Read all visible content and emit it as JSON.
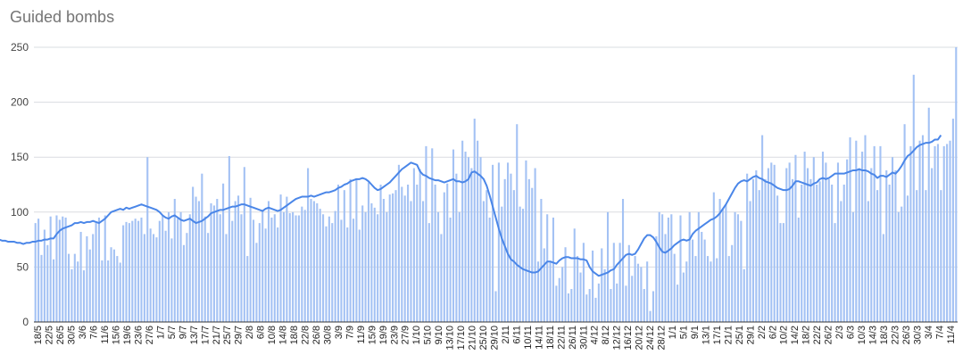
{
  "chart_data": {
    "type": "bar",
    "title": "Guided bombs",
    "xlabel": "",
    "ylabel": "",
    "ylim": [
      0,
      250
    ],
    "yticks": [
      0,
      50,
      100,
      150,
      200,
      250
    ],
    "grid": true,
    "legend": "none",
    "colors": {
      "bars": "#a4c2f4",
      "trend": "#4a86e8",
      "grid": "#dadce0",
      "axis": "#333333"
    },
    "x_tick_labels": [
      "18/5",
      "22/5",
      "26/5",
      "30/5",
      "3/6",
      "7/6",
      "11/6",
      "15/6",
      "19/6",
      "23/6",
      "27/6",
      "1/7",
      "5/7",
      "9/7",
      "13/7",
      "17/7",
      "21/7",
      "25/7",
      "29/7",
      "2/8",
      "6/8",
      "10/8",
      "14/8",
      "18/8",
      "22/8",
      "26/8",
      "30/8",
      "3/9",
      "7/9",
      "11/9",
      "15/9",
      "19/9",
      "23/9",
      "27/9",
      "1/10",
      "5/10",
      "9/10",
      "13/10",
      "17/10",
      "21/10",
      "25/10",
      "29/10",
      "2/11",
      "6/11",
      "10/11",
      "14/11",
      "18/11",
      "22/11",
      "26/11",
      "30/11",
      "4/12",
      "8/12",
      "12/12",
      "16/12",
      "20/12",
      "24/12",
      "28/12",
      "1/1",
      "5/1",
      "9/1",
      "13/1",
      "17/1",
      "21/1",
      "25/1",
      "29/1",
      "2/2",
      "6/2",
      "10/2",
      "14/2",
      "18/2",
      "22/2",
      "26/2",
      "2/3",
      "6/3",
      "10/3",
      "14/3",
      "18/3",
      "22/3",
      "26/3",
      "30/3",
      "3/4",
      "7/4",
      "11/4"
    ],
    "series": [
      {
        "type": "bar",
        "values": [
          90,
          94,
          61,
          84,
          70,
          96,
          57,
          97,
          93,
          96,
          95,
          62,
          48,
          62,
          55,
          82,
          47,
          78,
          66,
          80,
          90,
          95,
          56,
          97,
          56,
          68,
          66,
          60,
          54,
          88,
          91,
          90,
          92,
          94,
          92,
          95,
          80,
          150,
          85,
          80,
          77,
          92,
          97,
          83,
          100,
          76,
          112,
          94,
          100,
          70,
          81,
          98,
          123,
          114,
          110,
          135,
          96,
          81,
          108,
          106,
          112,
          98,
          126,
          80,
          151,
          92,
          110,
          115,
          98,
          141,
          60,
          113,
          93,
          72,
          90,
          102,
          85,
          110,
          95,
          98,
          86,
          116,
          100,
          114,
          99,
          100,
          97,
          97,
          105,
          102,
          140,
          112,
          110,
          108,
          103,
          98,
          87,
          96,
          90,
          101,
          125,
          93,
          120,
          86,
          130,
          94,
          130,
          84,
          106,
          100,
          127,
          108,
          104,
          98,
          125,
          112,
          100,
          116,
          117,
          120,
          143,
          123,
          115,
          125,
          110,
          140,
          125,
          139,
          110,
          160,
          90,
          158,
          125,
          100,
          80,
          118,
          126,
          95,
          157,
          135,
          100,
          165,
          155,
          150,
          140,
          185,
          165,
          150,
          110,
          120,
          95,
          143,
          28,
          145,
          105,
          130,
          145,
          135,
          120,
          180,
          105,
          103,
          147,
          130,
          122,
          140,
          55,
          112,
          67,
          98,
          55,
          95,
          33,
          40,
          50,
          68,
          26,
          30,
          85,
          60,
          45,
          72,
          25,
          30,
          65,
          22,
          35,
          67,
          48,
          100,
          30,
          72,
          35,
          72,
          112,
          33,
          70,
          42,
          60,
          53,
          50,
          30,
          55,
          10,
          28,
          78,
          100,
          98,
          80,
          95,
          98,
          62,
          34,
          97,
          45,
          55,
          100,
          75,
          60,
          100,
          82,
          75,
          60,
          55,
          118,
          58,
          112,
          103,
          107,
          60,
          70,
          100,
          98,
          92,
          48,
          135,
          110,
          130,
          138,
          120,
          170,
          130,
          140,
          145,
          143,
          115,
          90,
          90,
          140,
          145,
          130,
          152,
          95,
          125,
          155,
          140,
          130,
          150,
          125,
          128,
          155,
          145,
          130,
          125,
          90,
          145,
          110,
          125,
          148,
          168,
          100,
          165,
          140,
          155,
          170,
          110,
          140,
          160,
          120,
          160,
          80,
          138,
          125,
          150,
          138,
          100,
          105,
          180,
          115,
          160,
          225,
          120,
          165,
          170,
          120,
          195,
          140,
          160,
          162,
          120,
          160,
          162,
          165,
          185,
          250
        ]
      },
      {
        "type": "line",
        "name": "",
        "values": [
          85,
          81,
          80,
          80,
          79,
          78,
          77,
          76,
          75,
          75,
          74,
          74,
          73,
          73,
          73,
          72,
          72,
          71,
          72,
          72,
          73,
          73,
          74,
          74,
          75,
          75,
          76,
          76,
          80,
          83,
          85,
          86,
          87,
          88,
          90,
          90,
          91,
          90,
          91,
          91,
          92,
          91,
          90,
          92,
          94,
          97,
          100,
          101,
          102,
          103,
          102,
          104,
          103,
          104,
          105,
          106,
          107,
          106,
          105,
          104,
          103,
          102,
          100,
          97,
          95,
          94,
          96,
          97,
          95,
          93,
          92,
          93,
          94,
          92,
          90,
          91,
          92,
          94,
          96,
          99,
          100,
          101,
          102,
          102,
          103,
          104,
          105,
          105,
          106,
          107,
          107,
          106,
          105,
          104,
          103,
          102,
          101,
          103,
          104,
          103,
          102,
          101,
          102,
          104,
          106,
          108,
          110,
          112,
          113,
          114,
          114,
          114,
          115,
          114,
          115,
          116,
          117,
          118,
          118,
          119,
          120,
          122,
          123,
          125,
          126,
          128,
          129,
          130,
          130,
          131,
          130,
          128,
          125,
          122,
          120,
          121,
          123,
          125,
          127,
          130,
          133,
          136,
          139,
          141,
          143,
          145,
          144,
          143,
          137,
          134,
          133,
          131,
          130,
          129,
          129,
          128,
          127,
          128,
          129,
          130,
          128,
          128,
          127,
          128,
          130,
          136,
          137,
          135,
          133,
          130,
          124,
          115,
          105,
          95,
          85,
          76,
          69,
          62,
          57,
          55,
          52,
          50,
          48,
          47,
          46,
          45,
          45,
          46,
          49,
          52,
          55,
          55,
          54,
          53,
          56,
          58,
          59,
          59,
          58,
          58,
          58,
          57,
          57,
          56,
          50,
          46,
          44,
          42,
          43,
          44,
          45,
          47,
          48,
          52,
          55,
          58,
          61,
          62,
          61,
          62,
          66,
          71,
          76,
          79,
          79,
          77,
          73,
          68,
          64,
          63,
          65,
          67,
          70,
          72,
          74,
          75,
          74,
          75,
          80,
          83,
          85,
          87,
          89,
          91,
          93,
          94,
          96,
          99,
          103,
          107,
          112,
          117,
          122,
          126,
          128,
          129,
          128,
          130,
          132,
          133,
          131,
          130,
          128,
          127,
          126,
          124,
          122,
          121,
          120,
          120,
          121,
          124,
          128,
          128,
          127,
          126,
          125,
          124,
          126,
          127,
          130,
          131,
          130,
          131,
          133,
          135,
          135,
          135,
          135,
          136,
          137,
          138,
          138,
          139,
          138,
          138,
          137,
          135,
          134,
          131,
          133,
          133,
          132,
          134,
          136,
          135,
          138,
          142,
          147,
          151,
          153,
          156,
          159,
          161,
          162,
          163,
          163,
          164,
          166,
          166,
          170
        ]
      }
    ]
  }
}
